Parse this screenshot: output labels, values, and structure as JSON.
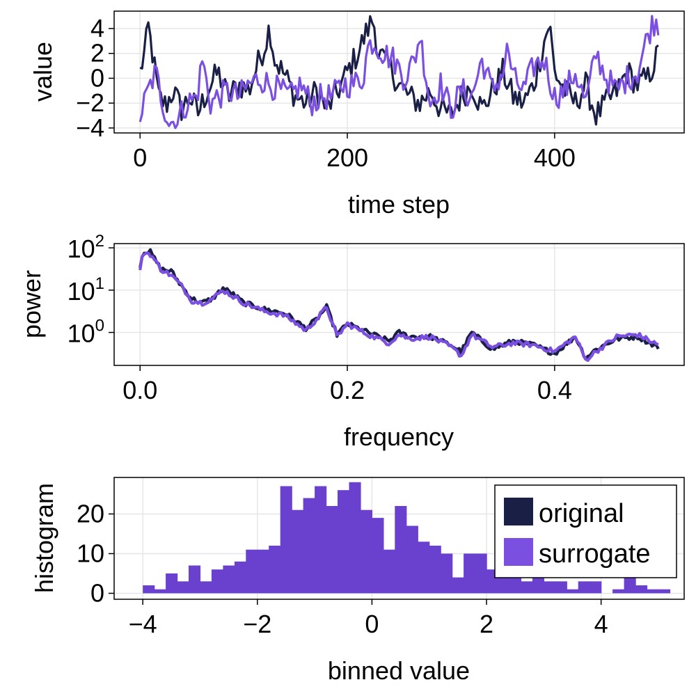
{
  "colors": {
    "original": "#1a1f45",
    "surrogate": "#7b4fe0",
    "hist_fill": "#6a40cf"
  },
  "chart_data": [
    {
      "type": "line",
      "title": "",
      "xlabel": "time step",
      "ylabel": "value",
      "xlim": [
        -25,
        525
      ],
      "ylim": [
        -4.4,
        5.4
      ],
      "xticks": [
        0,
        200,
        400
      ],
      "xtick_labels": [
        "0",
        "200",
        "400"
      ],
      "yticks": [
        -4,
        -2,
        0,
        2,
        4
      ],
      "ytick_labels": [
        "−4",
        "−2",
        "0",
        "2",
        "4"
      ],
      "series": [
        {
          "name": "original",
          "anchors_x": [
            0,
            5,
            8,
            12,
            18,
            25,
            32,
            40,
            48,
            56,
            65,
            75,
            85,
            95,
            105,
            115,
            120,
            125,
            130,
            140,
            150,
            160,
            170,
            180,
            190,
            200,
            210,
            220,
            225,
            230,
            240,
            250,
            260,
            270,
            280,
            290,
            300,
            310,
            320,
            330,
            340,
            350,
            360,
            370,
            380,
            390,
            395,
            400,
            410,
            420,
            430,
            440,
            450,
            460,
            470,
            480,
            490,
            500
          ],
          "anchors_y": [
            0.5,
            2.3,
            4.1,
            2.0,
            -1.5,
            -2.2,
            -1.0,
            -2.5,
            -1.5,
            -2.8,
            -1.0,
            0.5,
            -1.5,
            -0.5,
            -1.0,
            1.5,
            2.5,
            4.2,
            1.5,
            0.2,
            -1.5,
            -2.0,
            -1.0,
            -2.5,
            -1.2,
            0.5,
            2.0,
            4.0,
            4.8,
            2.0,
            1.0,
            -0.5,
            -1.5,
            -2.0,
            -1.0,
            -2.5,
            -3.0,
            -1.5,
            -0.5,
            -2.5,
            -1.0,
            0.5,
            -1.5,
            -2.0,
            -0.5,
            3.0,
            4.5,
            0.5,
            -1.0,
            -2.0,
            -0.5,
            -3.0,
            -2.0,
            -1.0,
            0.5,
            -0.5,
            0.0,
            2.0
          ]
        },
        {
          "name": "surrogate",
          "anchors_x": [
            0,
            8,
            15,
            22,
            28,
            35,
            45,
            55,
            60,
            68,
            75,
            85,
            95,
            105,
            115,
            125,
            135,
            145,
            155,
            165,
            175,
            185,
            195,
            205,
            215,
            220,
            225,
            235,
            245,
            255,
            265,
            270,
            280,
            290,
            300,
            310,
            320,
            330,
            340,
            350,
            355,
            360,
            370,
            380,
            390,
            400,
            410,
            420,
            430,
            440,
            450,
            460,
            470,
            480,
            490,
            495,
            500
          ],
          "anchors_y": [
            -3.0,
            -1.0,
            0.5,
            -2.0,
            -3.5,
            -3.5,
            -2.0,
            -1.5,
            1.5,
            -2.0,
            -1.5,
            -1.0,
            -1.5,
            -0.5,
            0.0,
            -0.5,
            -1.0,
            -1.5,
            -0.5,
            -2.0,
            -1.5,
            -1.5,
            -0.5,
            -0.5,
            0.0,
            2.5,
            3.0,
            2.0,
            1.5,
            0.0,
            1.5,
            3.5,
            -2.0,
            -0.5,
            -2.5,
            -1.0,
            -1.5,
            1.5,
            -1.0,
            0.5,
            2.5,
            0.0,
            -1.0,
            1.0,
            1.5,
            -1.5,
            -1.0,
            0.5,
            -2.0,
            2.0,
            0.0,
            -1.0,
            0.0,
            0.5,
            3.5,
            4.5,
            4.5
          ]
        }
      ]
    },
    {
      "type": "line",
      "title": "",
      "xlabel": "frequency",
      "ylabel": "power",
      "yscale": "log10",
      "xlim": [
        -0.025,
        0.525
      ],
      "ylim_log10": [
        -0.78,
        2.1
      ],
      "xticks": [
        0.0,
        0.2,
        0.4
      ],
      "xtick_labels": [
        "0.0",
        "0.2",
        "0.4"
      ],
      "yticks_log10": [
        0,
        1,
        2
      ],
      "ytick_base": "10",
      "ytick_exponents": [
        "2",
        "1",
        "0"
      ],
      "series": [
        {
          "name": "original",
          "anchors_x": [
            0.0,
            0.003,
            0.01,
            0.02,
            0.03,
            0.04,
            0.05,
            0.06,
            0.07,
            0.08,
            0.09,
            0.1,
            0.12,
            0.14,
            0.16,
            0.17,
            0.18,
            0.19,
            0.2,
            0.22,
            0.24,
            0.25,
            0.26,
            0.28,
            0.3,
            0.31,
            0.32,
            0.34,
            0.36,
            0.38,
            0.4,
            0.42,
            0.43,
            0.44,
            0.46,
            0.48,
            0.5
          ],
          "anchors_y_log10": [
            1.55,
            1.93,
            1.9,
            1.5,
            1.45,
            1.1,
            0.8,
            0.7,
            0.8,
            1.05,
            0.9,
            0.7,
            0.55,
            0.45,
            0.1,
            0.3,
            0.6,
            -0.05,
            0.2,
            0.0,
            -0.2,
            0.0,
            -0.1,
            -0.1,
            -0.3,
            -0.45,
            0.0,
            -0.4,
            -0.2,
            -0.3,
            -0.5,
            -0.1,
            -0.6,
            -0.4,
            -0.15,
            -0.1,
            -0.35
          ]
        },
        {
          "name": "surrogate",
          "anchors_x": [
            0.0,
            0.003,
            0.01,
            0.02,
            0.03,
            0.04,
            0.05,
            0.06,
            0.07,
            0.08,
            0.09,
            0.1,
            0.12,
            0.14,
            0.16,
            0.17,
            0.18,
            0.19,
            0.2,
            0.22,
            0.24,
            0.25,
            0.26,
            0.28,
            0.3,
            0.31,
            0.32,
            0.34,
            0.36,
            0.38,
            0.4,
            0.42,
            0.43,
            0.44,
            0.46,
            0.48,
            0.5
          ],
          "anchors_y_log10": [
            1.45,
            1.9,
            1.85,
            1.5,
            1.35,
            1.1,
            0.75,
            0.7,
            0.8,
            1.0,
            0.85,
            0.7,
            0.5,
            0.4,
            0.05,
            0.3,
            0.6,
            -0.1,
            0.2,
            -0.05,
            -0.25,
            -0.05,
            -0.15,
            -0.1,
            -0.35,
            -0.55,
            -0.05,
            -0.35,
            -0.25,
            -0.3,
            -0.45,
            -0.1,
            -0.65,
            -0.45,
            -0.1,
            -0.05,
            -0.3
          ]
        }
      ]
    },
    {
      "type": "bar",
      "title": "",
      "xlabel": "binned value",
      "ylabel": "histogram",
      "xlim": [
        -4.5,
        5.45
      ],
      "ylim": [
        -1.5,
        29.2
      ],
      "xticks": [
        -4,
        -2,
        0,
        2,
        4
      ],
      "xtick_labels": [
        "−4",
        "−2",
        "0",
        "2",
        "4"
      ],
      "yticks": [
        0,
        10,
        20
      ],
      "ytick_labels": [
        "0",
        "10",
        "20"
      ],
      "bin_start": -4.0,
      "bin_width": 0.2,
      "counts": [
        2,
        1,
        5,
        3,
        7,
        3,
        6,
        7,
        8,
        11,
        11,
        12,
        27,
        21,
        24,
        27,
        22,
        26,
        28,
        21,
        19,
        11,
        22,
        17,
        13,
        12,
        10,
        4,
        10,
        10,
        6,
        7,
        6,
        3,
        4,
        3,
        3,
        1,
        3,
        3,
        0,
        1,
        5,
        2,
        1,
        1
      ]
    }
  ],
  "legend": {
    "items": [
      "original",
      "surrogate"
    ],
    "placement": "top-right"
  }
}
